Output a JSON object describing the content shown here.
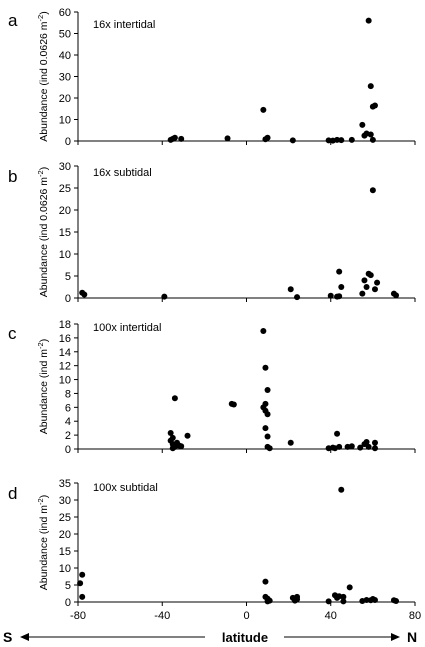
{
  "chart_data": [
    {
      "type": "scatter",
      "panel": "a",
      "title": "16x intertidal",
      "ylabel": "Abundance  (ind 0.0626  m",
      "ylabel_sup": "-2",
      "ylabel_end": ")",
      "xlim": [
        -80,
        80
      ],
      "ylim": [
        0,
        60
      ],
      "yticks": [
        0,
        10,
        20,
        30,
        40,
        50,
        60
      ],
      "points": [
        {
          "x": -36,
          "y": 0.5
        },
        {
          "x": -35,
          "y": 1
        },
        {
          "x": -34,
          "y": 1.5
        },
        {
          "x": -31,
          "y": 1
        },
        {
          "x": -9,
          "y": 1.2
        },
        {
          "x": 8,
          "y": 14.5
        },
        {
          "x": 9,
          "y": 0.8
        },
        {
          "x": 10,
          "y": 1.5
        },
        {
          "x": 22,
          "y": 0.3
        },
        {
          "x": 39,
          "y": 0.3
        },
        {
          "x": 41,
          "y": 0.2
        },
        {
          "x": 43,
          "y": 0.5
        },
        {
          "x": 45,
          "y": 0.4
        },
        {
          "x": 50,
          "y": 0.5
        },
        {
          "x": 55,
          "y": 7.5
        },
        {
          "x": 56,
          "y": 2.5
        },
        {
          "x": 57,
          "y": 3.5
        },
        {
          "x": 58,
          "y": 56
        },
        {
          "x": 59,
          "y": 25.5
        },
        {
          "x": 60,
          "y": 16
        },
        {
          "x": 61,
          "y": 16.5
        },
        {
          "x": 59,
          "y": 3
        },
        {
          "x": 60,
          "y": 0.5
        }
      ]
    },
    {
      "type": "scatter",
      "panel": "b",
      "title": "16x subtidal",
      "ylabel": "Abundance  (ind 0.0626  m",
      "ylabel_sup": "-2",
      "ylabel_end": ")",
      "xlim": [
        -80,
        80
      ],
      "ylim": [
        0,
        30
      ],
      "yticks": [
        0,
        5,
        10,
        15,
        20,
        25,
        30
      ],
      "points": [
        {
          "x": -78,
          "y": 1.2
        },
        {
          "x": -77,
          "y": 0.8
        },
        {
          "x": -39,
          "y": 0.3
        },
        {
          "x": 21,
          "y": 2
        },
        {
          "x": 24,
          "y": 0.2
        },
        {
          "x": 40,
          "y": 0.5
        },
        {
          "x": 43,
          "y": 0.3
        },
        {
          "x": 44,
          "y": 6
        },
        {
          "x": 45,
          "y": 2.5
        },
        {
          "x": 44,
          "y": 0.4
        },
        {
          "x": 55,
          "y": 1
        },
        {
          "x": 56,
          "y": 4
        },
        {
          "x": 57,
          "y": 2.5
        },
        {
          "x": 58,
          "y": 5.5
        },
        {
          "x": 59,
          "y": 5.2
        },
        {
          "x": 60,
          "y": 24.5
        },
        {
          "x": 61,
          "y": 2
        },
        {
          "x": 62,
          "y": 3.5
        },
        {
          "x": 70,
          "y": 1
        },
        {
          "x": 71,
          "y": 0.6
        }
      ]
    },
    {
      "type": "scatter",
      "panel": "c",
      "title": "100x intertidal",
      "ylabel": "Abundance  (ind m",
      "ylabel_sup": "-2",
      "ylabel_end": ")",
      "xlim": [
        -80,
        80
      ],
      "ylim": [
        0,
        18
      ],
      "yticks": [
        0,
        2,
        4,
        6,
        8,
        10,
        12,
        14,
        16,
        18
      ],
      "points": [
        {
          "x": -36,
          "y": 2.3
        },
        {
          "x": -35,
          "y": 1.6
        },
        {
          "x": -36,
          "y": 1.2
        },
        {
          "x": -35,
          "y": 0.7
        },
        {
          "x": -34,
          "y": 0.3
        },
        {
          "x": -35,
          "y": 0.1
        },
        {
          "x": -34,
          "y": 7.3
        },
        {
          "x": -33,
          "y": 0.9
        },
        {
          "x": -32,
          "y": 0.5
        },
        {
          "x": -31,
          "y": 0.4
        },
        {
          "x": -28,
          "y": 1.9
        },
        {
          "x": -7,
          "y": 6.5
        },
        {
          "x": -6,
          "y": 6.4
        },
        {
          "x": 8,
          "y": 17
        },
        {
          "x": 9,
          "y": 11.7
        },
        {
          "x": 10,
          "y": 8.5
        },
        {
          "x": 9,
          "y": 6.5
        },
        {
          "x": 8,
          "y": 6
        },
        {
          "x": 9,
          "y": 5.5
        },
        {
          "x": 10,
          "y": 5
        },
        {
          "x": 9,
          "y": 3
        },
        {
          "x": 10,
          "y": 1.8
        },
        {
          "x": 10,
          "y": 0.3
        },
        {
          "x": 11,
          "y": 0.1
        },
        {
          "x": 21,
          "y": 0.9
        },
        {
          "x": 39,
          "y": 0.1
        },
        {
          "x": 41,
          "y": 0.2
        },
        {
          "x": 42,
          "y": 0.1
        },
        {
          "x": 43,
          "y": 2.2
        },
        {
          "x": 44,
          "y": 0.3
        },
        {
          "x": 48,
          "y": 0.3
        },
        {
          "x": 50,
          "y": 0.4
        },
        {
          "x": 54,
          "y": 0.2
        },
        {
          "x": 56,
          "y": 0.7
        },
        {
          "x": 57,
          "y": 1.0
        },
        {
          "x": 58,
          "y": 0.3
        },
        {
          "x": 61,
          "y": 0.9
        },
        {
          "x": 61,
          "y": 0.1
        }
      ]
    },
    {
      "type": "scatter",
      "panel": "d",
      "title": "100x subtidal",
      "ylabel": "Abundance  (ind m",
      "ylabel_sup": "-2",
      "ylabel_end": ")",
      "xlim": [
        -80,
        80
      ],
      "ylim": [
        0,
        35
      ],
      "yticks": [
        0,
        5,
        10,
        15,
        20,
        25,
        30,
        35
      ],
      "xticks": [
        -80,
        -40,
        0,
        40,
        80
      ],
      "points": [
        {
          "x": -78,
          "y": 8
        },
        {
          "x": -79,
          "y": 5.5
        },
        {
          "x": -78,
          "y": 1.5
        },
        {
          "x": 9,
          "y": 6
        },
        {
          "x": 9,
          "y": 1.5
        },
        {
          "x": 10,
          "y": 1
        },
        {
          "x": 11,
          "y": 0.4
        },
        {
          "x": 10,
          "y": 0.2
        },
        {
          "x": 22,
          "y": 1.2
        },
        {
          "x": 23,
          "y": 0.4
        },
        {
          "x": 24,
          "y": 0.8
        },
        {
          "x": 24,
          "y": 1.5
        },
        {
          "x": 39,
          "y": 0.2
        },
        {
          "x": 42,
          "y": 2
        },
        {
          "x": 43,
          "y": 1.2
        },
        {
          "x": 44,
          "y": 1.7
        },
        {
          "x": 45,
          "y": 33
        },
        {
          "x": 46,
          "y": 1.5
        },
        {
          "x": 46,
          "y": 0.2
        },
        {
          "x": 49,
          "y": 4.3
        },
        {
          "x": 55,
          "y": 0.3
        },
        {
          "x": 57,
          "y": 0.6
        },
        {
          "x": 59,
          "y": 0.5
        },
        {
          "x": 60,
          "y": 0.9
        },
        {
          "x": 61,
          "y": 0.6
        },
        {
          "x": 70,
          "y": 0.5
        },
        {
          "x": 71,
          "y": 0.3
        }
      ]
    }
  ],
  "bottom_axis": {
    "south": "S",
    "north": "N",
    "label": "latitude"
  }
}
